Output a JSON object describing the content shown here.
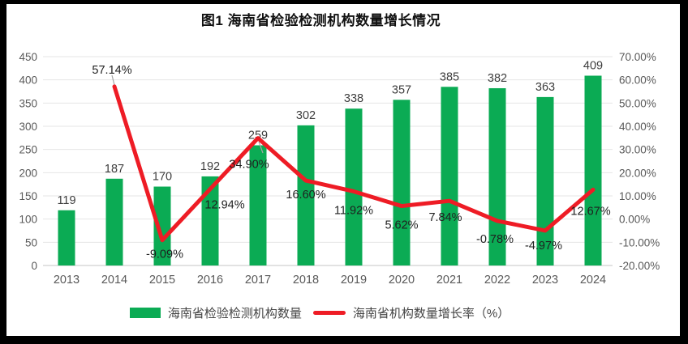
{
  "title": "图1 海南省检验检测机构数量增长情况",
  "chart_data": {
    "type": "bar+line",
    "title": "图1 海南省检验检测机构数量增长情况",
    "categories": [
      "2013",
      "2014",
      "2015",
      "2016",
      "2017",
      "2018",
      "2019",
      "2020",
      "2021",
      "2022",
      "2023",
      "2024"
    ],
    "series": [
      {
        "name": "海南省检验检测机构数量",
        "type": "bar",
        "axis": "left",
        "color": "#0BAB54",
        "values": [
          119,
          187,
          170,
          192,
          259,
          302,
          338,
          357,
          385,
          382,
          363,
          409
        ],
        "labels": [
          "119",
          "187",
          "170",
          "192",
          "259",
          "302",
          "338",
          "357",
          "385",
          "382",
          "363",
          "409"
        ]
      },
      {
        "name": "海南省机构数量增长率（%）",
        "type": "line",
        "axis": "right",
        "color": "#EE1C25",
        "values": [
          null,
          57.14,
          -9.09,
          12.94,
          34.9,
          16.6,
          11.92,
          5.62,
          7.84,
          -0.78,
          -4.97,
          12.67
        ],
        "labels": [
          "",
          "57.14%",
          "-9.09%",
          "12.94%",
          "34.90%",
          "16.60%",
          "11.92%",
          "5.62%",
          "7.84%",
          "-0.78%",
          "-4.97%",
          "12.67%"
        ]
      }
    ],
    "left_axis": {
      "min": 0,
      "max": 450,
      "step": 50,
      "tick_labels": [
        "0",
        "50",
        "100",
        "150",
        "200",
        "250",
        "300",
        "350",
        "400",
        "450"
      ]
    },
    "right_axis": {
      "min": -20,
      "max": 70,
      "step": 10,
      "tick_labels": [
        "-20.00%",
        "-10.00%",
        "0.00%",
        "10.00%",
        "20.00%",
        "30.00%",
        "40.00%",
        "50.00%",
        "60.00%",
        "70.00%"
      ]
    },
    "grid": true,
    "legend_position": "bottom",
    "colors": {
      "bar": "#0BAB54",
      "line": "#EE1C25",
      "gridline": "#E6E6E6",
      "axis_line": "#C6C6C6",
      "tick_text": "#595959",
      "bar_label_text": "#3D3D3D",
      "line_label_text": "#1F1F1F"
    }
  },
  "legend": {
    "items": [
      {
        "label": "海南省检验检测机构数量",
        "marker": "bar-swatch",
        "color": "#0BAB54"
      },
      {
        "label": "海南省机构数量增长率（%）",
        "marker": "line-swatch",
        "color": "#EE1C25"
      }
    ]
  }
}
